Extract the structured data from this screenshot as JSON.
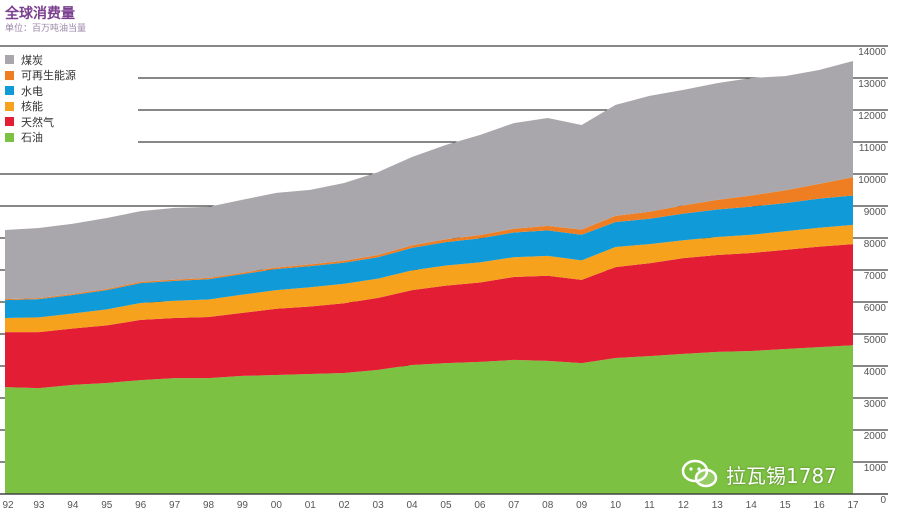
{
  "chart_data": {
    "type": "area",
    "stacked": true,
    "title": "全球消费量",
    "subtitle": "单位：百万吨油当量",
    "x": [
      "92",
      "93",
      "94",
      "95",
      "96",
      "97",
      "98",
      "99",
      "00",
      "01",
      "02",
      "03",
      "04",
      "05",
      "06",
      "07",
      "08",
      "09",
      "10",
      "11",
      "12",
      "13",
      "14",
      "15",
      "16",
      "17"
    ],
    "y_ticks": [
      "0",
      "1000",
      "2000",
      "3000",
      "4000",
      "5000",
      "6000",
      "7000",
      "8000",
      "9000",
      "10000",
      "11000",
      "12000",
      "13000",
      "14000"
    ],
    "ylim": [
      0,
      14000
    ],
    "legend_position": "top-left",
    "series": [
      {
        "name": "石油",
        "color": "#7dc142",
        "values": [
          3340,
          3310,
          3410,
          3470,
          3560,
          3620,
          3620,
          3690,
          3720,
          3750,
          3780,
          3880,
          4030,
          4090,
          4130,
          4190,
          4160,
          4090,
          4250,
          4310,
          4380,
          4440,
          4470,
          4530,
          4590,
          4650
        ]
      },
      {
        "name": "天然气",
        "color": "#e31d34",
        "values": [
          1720,
          1750,
          1760,
          1800,
          1880,
          1880,
          1910,
          1970,
          2070,
          2110,
          2180,
          2250,
          2340,
          2420,
          2480,
          2590,
          2660,
          2600,
          2840,
          2900,
          2990,
          3030,
          3060,
          3100,
          3140,
          3160
        ]
      },
      {
        "name": "核能",
        "color": "#f6a21d",
        "values": [
          440,
          460,
          470,
          500,
          530,
          540,
          550,
          570,
          580,
          600,
          610,
          600,
          620,
          630,
          630,
          620,
          620,
          610,
          630,
          600,
          560,
          560,
          570,
          580,
          590,
          600
        ]
      },
      {
        "name": "水电",
        "color": "#119ad8",
        "values": [
          560,
          570,
          580,
          600,
          620,
          620,
          630,
          640,
          660,
          660,
          660,
          670,
          700,
          730,
          750,
          770,
          800,
          800,
          780,
          790,
          830,
          860,
          880,
          880,
          910,
          920
        ]
      },
      {
        "name": "可再生能源",
        "color": "#ef7d22",
        "values": [
          30,
          32,
          34,
          36,
          38,
          40,
          42,
          45,
          50,
          55,
          60,
          70,
          80,
          90,
          100,
          120,
          140,
          160,
          190,
          220,
          260,
          300,
          350,
          400,
          460,
          570
        ]
      },
      {
        "name": "煤炭",
        "color": "#a9a7ab",
        "values": [
          2160,
          2190,
          2190,
          2220,
          2210,
          2240,
          2220,
          2280,
          2330,
          2330,
          2430,
          2590,
          2760,
          2950,
          3130,
          3300,
          3370,
          3270,
          3470,
          3620,
          3610,
          3650,
          3670,
          3570,
          3560,
          3630
        ]
      }
    ],
    "legend_order": [
      5,
      4,
      3,
      2,
      1,
      0
    ]
  },
  "watermark": "拉瓦锡1787"
}
